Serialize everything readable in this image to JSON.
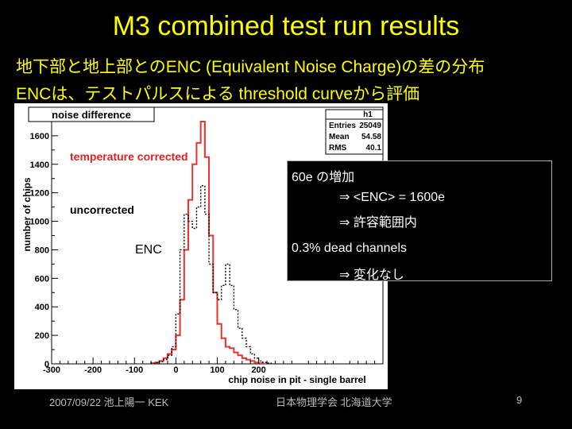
{
  "slide": {
    "title": "M3 combined test run results",
    "subtitle1": "地下部と地上部とのENC (Equivalent Noise Charge)の差の分布",
    "subtitle2": "ENCは、テストパルスによる threshold curveから評価",
    "enc_label": "ENC",
    "footer_left": "2007/09/22 池上陽一 KEK",
    "footer_center": "日本物理学会 北海道大学",
    "page_number": "9"
  },
  "callout": {
    "line1": "60e の増加",
    "line2": "⇒ <ENC> = 1600e",
    "line3": "⇒ 許容範囲内",
    "line4": "0.3% dead channels",
    "line5": "⇒ 変化なし"
  },
  "colors": {
    "corrected": "#e8322e",
    "uncorrected": "#000000",
    "title": "#ffff00",
    "label_red": "#dd2222"
  },
  "chart_data": {
    "type": "histogram",
    "title": "noise difference",
    "xlabel": "chip noise in pit - single barrel",
    "ylabel": "number of chips",
    "xlim": [
      -300,
      500
    ],
    "ylim": [
      0,
      1800
    ],
    "xticks": [
      -300,
      -200,
      -100,
      0,
      100,
      200
    ],
    "xtick_labels": [
      "-300",
      "-200",
      "-100",
      "0",
      "100",
      "200"
    ],
    "yticks": [
      0,
      200,
      400,
      600,
      800,
      1000,
      1200,
      1400,
      1600
    ],
    "grid": false,
    "stats_box": {
      "name": "h1",
      "rows": [
        {
          "label": "Entries",
          "value": "25049"
        },
        {
          "label": "Mean",
          "value": "54.58"
        },
        {
          "label": "RMS",
          "value": "40.1"
        }
      ]
    },
    "annotations": {
      "corrected_label": "temperature corrected",
      "uncorrected_label": "uncorrected"
    },
    "bin_width": 10,
    "series": [
      {
        "key": "corrected",
        "x": [
          -60,
          -50,
          -40,
          -30,
          -20,
          -10,
          0,
          10,
          20,
          30,
          40,
          50,
          60,
          70,
          80,
          90,
          100,
          110,
          120,
          130,
          140,
          150,
          160,
          170,
          180,
          190,
          200
        ],
        "values": [
          5,
          10,
          20,
          40,
          70,
          100,
          200,
          450,
          800,
          1150,
          1400,
          1550,
          1700,
          1450,
          900,
          500,
          280,
          180,
          120,
          110,
          80,
          60,
          40,
          30,
          20,
          10,
          5
        ]
      },
      {
        "key": "uncorrected",
        "x": [
          -60,
          -50,
          -40,
          -30,
          -20,
          -10,
          0,
          10,
          20,
          30,
          40,
          50,
          60,
          70,
          80,
          90,
          100,
          110,
          120,
          130,
          140,
          150,
          160,
          170,
          180,
          190,
          200,
          210,
          220
        ],
        "values": [
          3,
          8,
          15,
          30,
          60,
          120,
          350,
          800,
          1050,
          1000,
          950,
          1100,
          1250,
          1050,
          700,
          500,
          450,
          550,
          700,
          550,
          380,
          250,
          180,
          120,
          70,
          40,
          20,
          10,
          5
        ]
      }
    ]
  }
}
